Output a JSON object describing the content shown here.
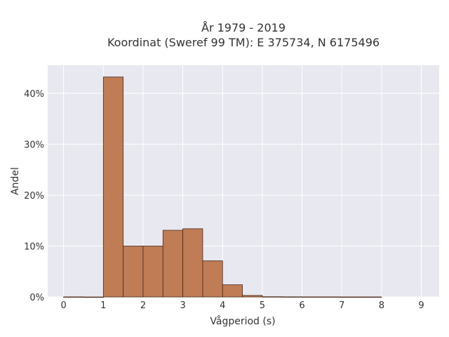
{
  "chart_data": {
    "type": "bar",
    "title_lines": [
      "År 1979 - 2019",
      "Koordinat (Sweref 99 TM): E 375734, N 6175496"
    ],
    "xlabel": "Vågperiod (s)",
    "ylabel": "Andel",
    "xlim": [
      -0.4,
      9.45
    ],
    "ylim": [
      0,
      0.455
    ],
    "x_ticks": [
      0,
      1,
      2,
      3,
      4,
      5,
      6,
      7,
      8,
      9
    ],
    "x_tick_labels": [
      "0",
      "1",
      "2",
      "3",
      "4",
      "5",
      "6",
      "7",
      "8",
      "9"
    ],
    "y_ticks": [
      0,
      0.1,
      0.2,
      0.3,
      0.4
    ],
    "y_tick_labels": [
      "0%",
      "10%",
      "20%",
      "30%",
      "40%"
    ],
    "grid": true,
    "bin_width": 0.5,
    "bins": [
      0,
      0.5,
      1,
      1.5,
      2,
      2.5,
      3,
      3.5,
      4,
      4.5,
      5,
      5.5,
      6,
      6.5,
      7,
      7.5
    ],
    "values": [
      0.0002,
      0,
      0.432,
      0.1,
      0.1,
      0.131,
      0.134,
      0.071,
      0.024,
      0.003,
      0.0005,
      0.0003,
      0.0002,
      0.0002,
      0.0001,
      0.0001
    ],
    "colors": {
      "bar_fill": "#bf7c55",
      "bar_edge": "#4a2a1a",
      "plot_bg": "#e8e8f0",
      "grid": "#ffffff"
    }
  }
}
